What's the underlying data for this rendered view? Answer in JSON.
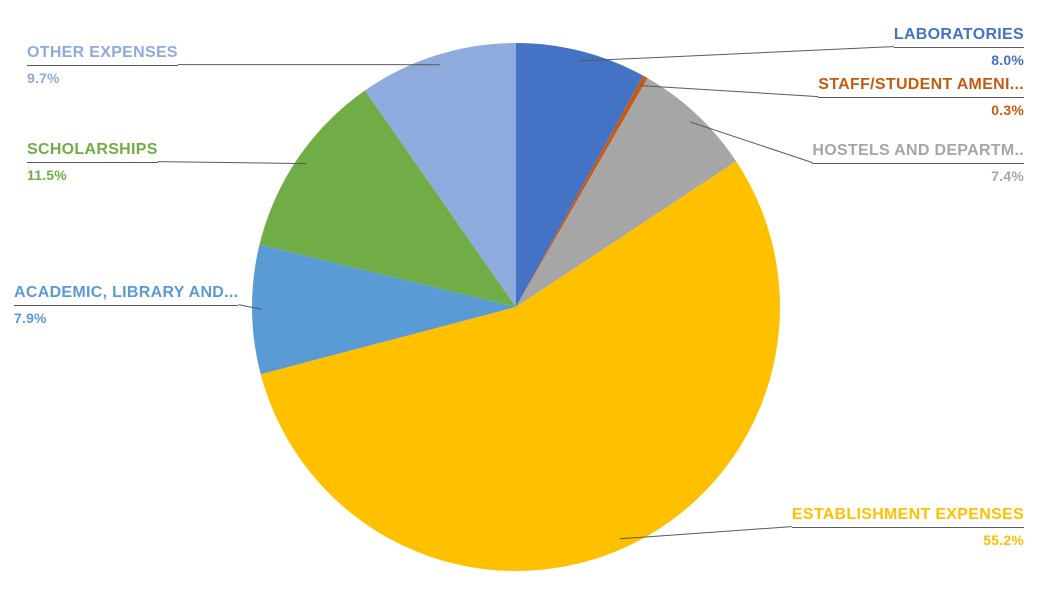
{
  "chart_data": {
    "type": "pie",
    "title": "",
    "direction": "clockwise",
    "start_angle_deg": 0,
    "legend_position": "none",
    "background": "#FFFFFF",
    "leader_line_color": "#595959",
    "slices": [
      {
        "label": "LABORATORIES",
        "value": 8.0,
        "pct_display": "8.0%",
        "color": "#4472C4"
      },
      {
        "label": "STAFF/STUDENT AMENI...",
        "value": 0.3,
        "pct_display": "0.3%",
        "color": "#C55A11"
      },
      {
        "label": "HOSTELS AND DEPARTM..",
        "value": 7.4,
        "pct_display": "7.4%",
        "color": "#A6A6A6"
      },
      {
        "label": "ESTABLISHMENT EXPENSES",
        "value": 55.2,
        "pct_display": "55.2%",
        "color": "#FFC000"
      },
      {
        "label": "ACADEMIC, LIBRARY AND...",
        "value": 7.9,
        "pct_display": "7.9%",
        "color": "#5B9BD5"
      },
      {
        "label": "SCHOLARSHIPS",
        "value": 11.5,
        "pct_display": "11.5%",
        "color": "#70AD47"
      },
      {
        "label": "OTHER EXPENSES",
        "value": 9.7,
        "pct_display": "9.7%",
        "color": "#8FAADC"
      }
    ]
  }
}
